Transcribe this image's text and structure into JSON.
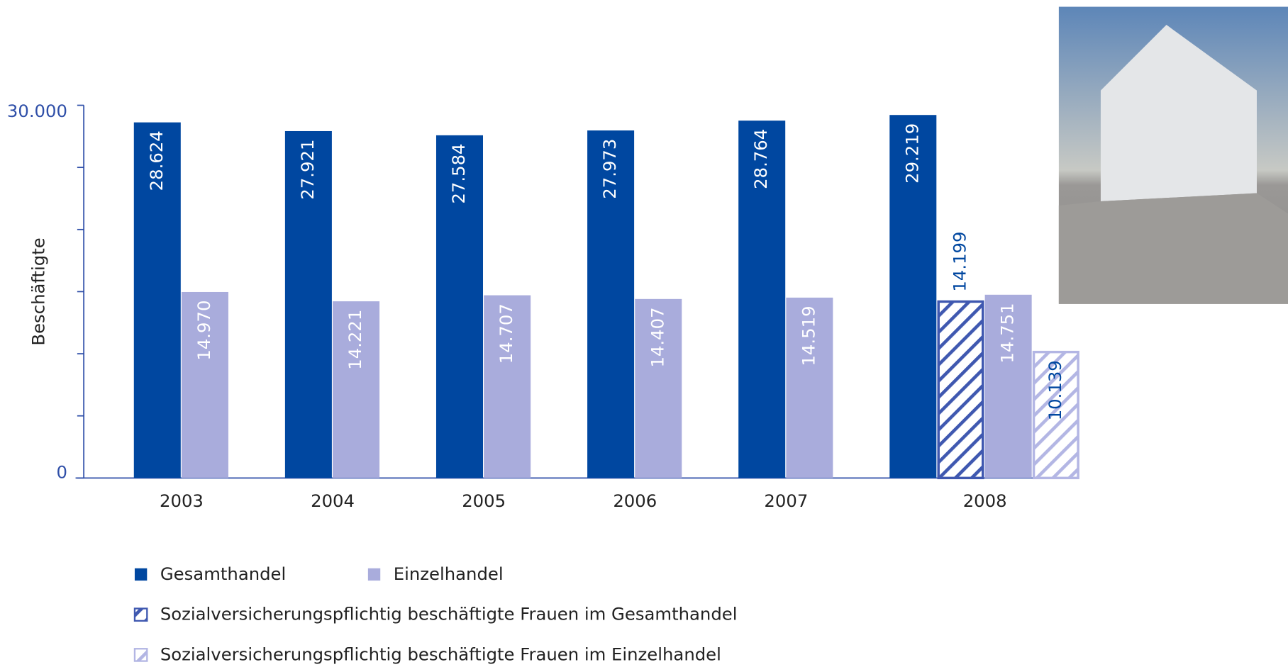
{
  "chart_data": {
    "type": "bar",
    "y_label": "Beschäftigte",
    "categories": [
      "2003",
      "2004",
      "2005",
      "2006",
      "2007",
      "2008"
    ],
    "series": [
      {
        "name": "Gesamthandel",
        "color": "#0047a0",
        "hatched": false,
        "label_color": "#ffffff",
        "values": [
          28624,
          27921,
          27584,
          27973,
          28764,
          29219
        ],
        "value_labels": [
          "28.624",
          "27.921",
          "27.584",
          "27.973",
          "28.764",
          "29.219"
        ]
      },
      {
        "name": "Sozialversicherungspflichtig beschäftigte Frauen im Gesamthandel",
        "color": "#3f58b0",
        "hatched": true,
        "label_color": "#0047a0",
        "values": [
          null,
          null,
          null,
          null,
          null,
          14199
        ],
        "value_labels": [
          null,
          null,
          null,
          null,
          null,
          "14.199"
        ]
      },
      {
        "name": "Einzelhandel",
        "color": "#a9acdc",
        "hatched": false,
        "label_color": "#ffffff",
        "values": [
          14970,
          14221,
          14707,
          14407,
          14519,
          14751
        ],
        "value_labels": [
          "14.970",
          "14.221",
          "14.707",
          "14.407",
          "14.519",
          "14.751"
        ]
      },
      {
        "name": "Sozialversicherungspflichtig beschäftigte Frauen im Einzelhandel",
        "color": "#b3b6e4",
        "hatched": true,
        "label_color": "#0047a0",
        "values": [
          null,
          null,
          null,
          null,
          null,
          10139
        ],
        "value_labels": [
          null,
          null,
          null,
          null,
          null,
          "10.139"
        ]
      }
    ],
    "ylim": [
      0,
      30000
    ],
    "yticks": [
      0,
      {
        "value": 30000,
        "label": "30.000"
      }
    ],
    "yminorticks": [
      5000,
      10000,
      15000,
      20000,
      25000
    ],
    "grid": false
  }
}
